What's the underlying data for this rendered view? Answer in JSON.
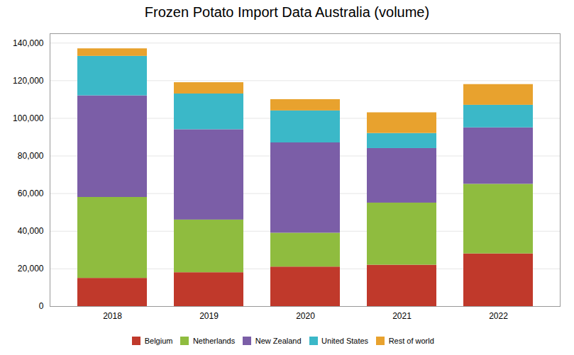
{
  "chart_data": {
    "type": "bar",
    "title": "Frozen Potato Import Data Australia (volume)",
    "categories": [
      "2018",
      "2019",
      "2020",
      "2021",
      "2022"
    ],
    "series": [
      {
        "name": "Belgium",
        "color": "#c0392b",
        "values": [
          15000,
          18000,
          21000,
          22000,
          28000
        ]
      },
      {
        "name": "Netherlands",
        "color": "#8fbc3f",
        "values": [
          43000,
          28000,
          18000,
          33000,
          37000
        ]
      },
      {
        "name": "New Zealand",
        "color": "#7b5ea7",
        "values": [
          54000,
          48000,
          48000,
          29000,
          30000
        ]
      },
      {
        "name": "United States",
        "color": "#3bb8c8",
        "values": [
          21000,
          19000,
          17000,
          8000,
          12000
        ]
      },
      {
        "name": "Rest of world",
        "color": "#e8a22e",
        "values": [
          4000,
          6000,
          6000,
          11000,
          11000
        ]
      }
    ],
    "stacked": true,
    "ylim": [
      0,
      145000
    ],
    "yticks": [
      0,
      {
        "value": 20000,
        "label": "20,000"
      },
      {
        "value": 40000,
        "label": "40,000"
      },
      {
        "value": 60000,
        "label": "60,000"
      },
      {
        "value": 80000,
        "label": "80,000"
      },
      {
        "value": 100000,
        "label": "100,000"
      },
      {
        "value": 120000,
        "label": "120,000"
      },
      {
        "value": 140000,
        "label": "140,000"
      }
    ],
    "grid": true,
    "legend": "bottom"
  }
}
